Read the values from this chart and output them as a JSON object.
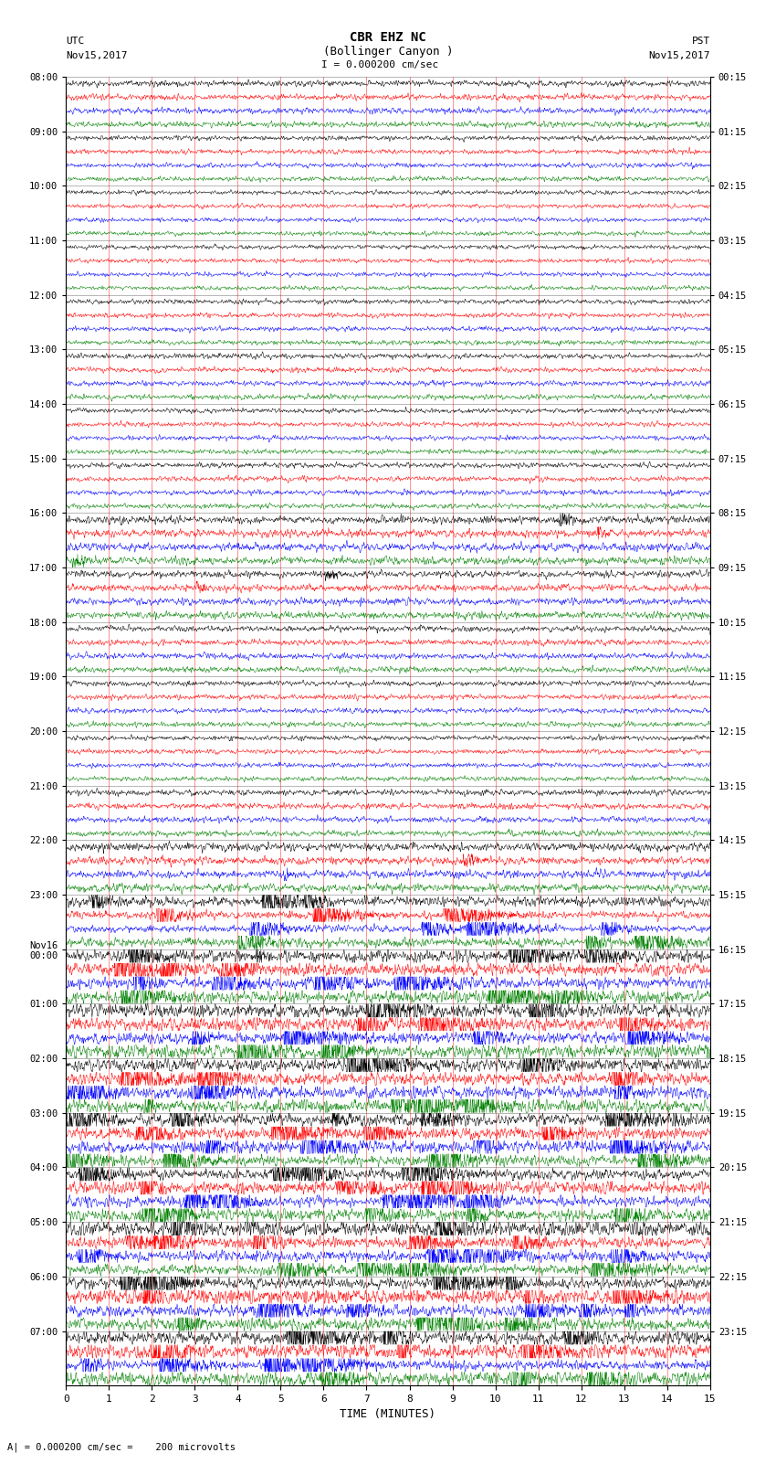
{
  "title_line1": "CBR EHZ NC",
  "title_line2": "(Bollinger Canyon )",
  "scale_label": "I = 0.000200 cm/sec",
  "left_label_top": "UTC",
  "left_label_date": "Nov15,2017",
  "right_label_top": "PST",
  "right_label_date": "Nov15,2017",
  "xlabel": "TIME (MINUTES)",
  "bottom_note": "A| = 0.000200 cm/sec =    200 microvolts",
  "xmin": 0,
  "xmax": 15,
  "colors": [
    "black",
    "red",
    "blue",
    "green"
  ],
  "utc_hour_labels": [
    "08:00",
    "09:00",
    "10:00",
    "11:00",
    "12:00",
    "13:00",
    "14:00",
    "15:00",
    "16:00",
    "17:00",
    "18:00",
    "19:00",
    "20:00",
    "21:00",
    "22:00",
    "23:00",
    "Nov16\n00:00",
    "01:00",
    "02:00",
    "03:00",
    "04:00",
    "05:00",
    "06:00",
    "07:00"
  ],
  "pst_hour_labels": [
    "00:15",
    "01:15",
    "02:15",
    "03:15",
    "04:15",
    "05:15",
    "06:15",
    "07:15",
    "08:15",
    "09:15",
    "10:15",
    "11:15",
    "12:15",
    "13:15",
    "14:15",
    "15:15",
    "16:15",
    "17:15",
    "18:15",
    "19:15",
    "20:15",
    "21:15",
    "22:15",
    "23:15"
  ],
  "num_hours": 24,
  "traces_per_hour": 4,
  "noise_amplitude": [
    0.25,
    0.2,
    0.18,
    0.18,
    0.2,
    0.22,
    0.2,
    0.22,
    0.35,
    0.3,
    0.25,
    0.22,
    0.2,
    0.25,
    0.35,
    0.7,
    1.0,
    1.0,
    1.0,
    1.0,
    1.0,
    1.0,
    1.0,
    1.0
  ],
  "fig_width": 8.5,
  "fig_height": 16.13,
  "dpi": 100
}
